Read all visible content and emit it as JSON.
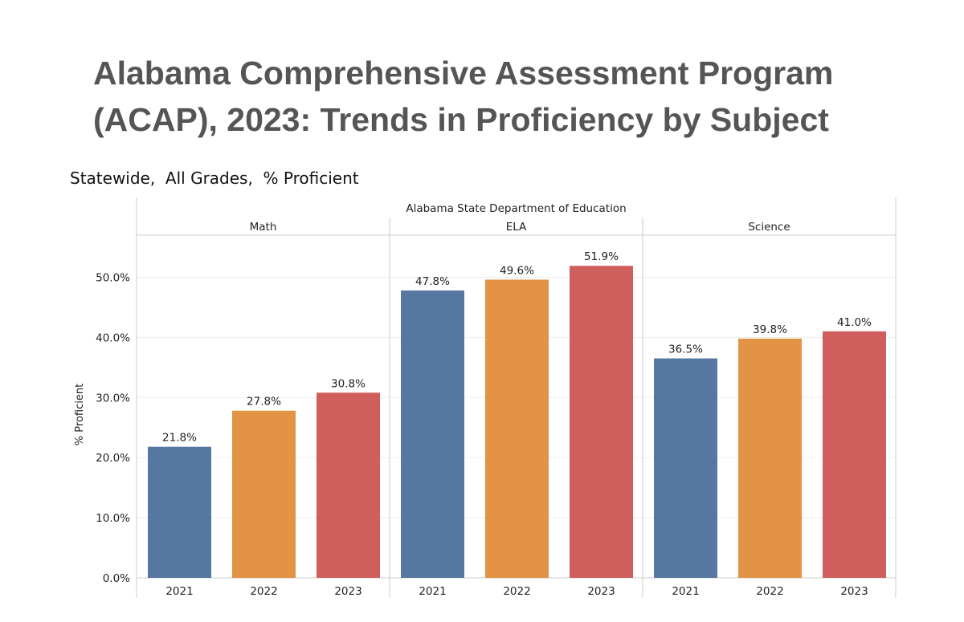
{
  "header": {
    "title_line1": "Alabama Comprehensive Assessment Program",
    "title_line2": "(ACAP), 2023: Trends in Proficiency by Subject",
    "subtitle": "Statewide,  All Grades,  % Proficient"
  },
  "colors": {
    "2021": "#56779f",
    "2022": "#e29343",
    "2023": "#d05e5d",
    "grid": "#eeeeee",
    "frame": "#cccccc",
    "text": "#222222"
  },
  "chart_data": {
    "type": "bar",
    "title": "Alabama State Department of Education",
    "ylabel": "% Proficient",
    "xlabel": "",
    "ylim": [
      0,
      57
    ],
    "yticks": [
      0,
      10,
      20,
      30,
      40,
      50
    ],
    "ytick_labels": [
      "0.0%",
      "10.0%",
      "20.0%",
      "30.0%",
      "40.0%",
      "50.0%"
    ],
    "categories": [
      "2021",
      "2022",
      "2023"
    ],
    "panels": [
      {
        "name": "Math",
        "values": [
          21.8,
          27.8,
          30.8
        ],
        "labels": [
          "21.8%",
          "27.8%",
          "30.8%"
        ]
      },
      {
        "name": "ELA",
        "values": [
          47.8,
          49.6,
          51.9
        ],
        "labels": [
          "47.8%",
          "49.6%",
          "51.9%"
        ]
      },
      {
        "name": "Science",
        "values": [
          36.5,
          39.8,
          41.0
        ],
        "labels": [
          "36.5%",
          "39.8%",
          "41.0%"
        ]
      }
    ]
  }
}
